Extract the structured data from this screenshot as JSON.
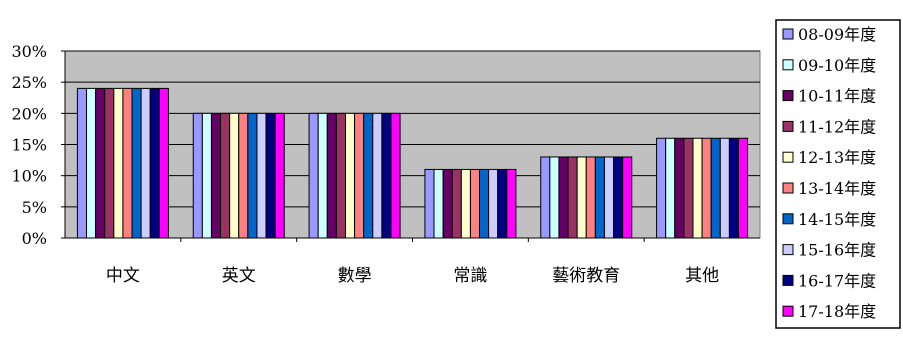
{
  "chart_data": {
    "type": "bar",
    "categories": [
      "中文",
      "英文",
      "數學",
      "常識",
      "藝術教育",
      "其他"
    ],
    "series": [
      {
        "name": "08-09年度",
        "color": "#9999ff",
        "values": [
          24,
          20,
          20,
          11,
          13,
          16
        ]
      },
      {
        "name": "09-10年度",
        "color": "#ccffff",
        "values": [
          24,
          20,
          20,
          11,
          13,
          16
        ]
      },
      {
        "name": "10-11年度",
        "color": "#660066",
        "values": [
          24,
          20,
          20,
          11,
          13,
          16
        ]
      },
      {
        "name": "11-12年度",
        "color": "#993366",
        "values": [
          24,
          20,
          20,
          11,
          13,
          16
        ]
      },
      {
        "name": "12-13年度",
        "color": "#ffffcc",
        "values": [
          24,
          20,
          20,
          11,
          13,
          16
        ]
      },
      {
        "name": "13-14年度",
        "color": "#ff8080",
        "values": [
          24,
          20,
          20,
          11,
          13,
          16
        ]
      },
      {
        "name": "14-15年度",
        "color": "#0066cc",
        "values": [
          24,
          20,
          20,
          11,
          13,
          16
        ]
      },
      {
        "name": "15-16年度",
        "color": "#ccccff",
        "values": [
          24,
          20,
          20,
          11,
          13,
          16
        ]
      },
      {
        "name": "16-17年度",
        "color": "#000080",
        "values": [
          24,
          20,
          20,
          11,
          13,
          16
        ]
      },
      {
        "name": "17-18年度",
        "color": "#ff00ff",
        "values": [
          24,
          20,
          20,
          11,
          13,
          16
        ]
      }
    ],
    "yticks": [
      "0%",
      "5%",
      "10%",
      "15%",
      "20%",
      "25%",
      "30%"
    ],
    "ylim": [
      0,
      30
    ],
    "grid": true,
    "plot_background": "#c0c0c0",
    "legend_position": "right"
  }
}
